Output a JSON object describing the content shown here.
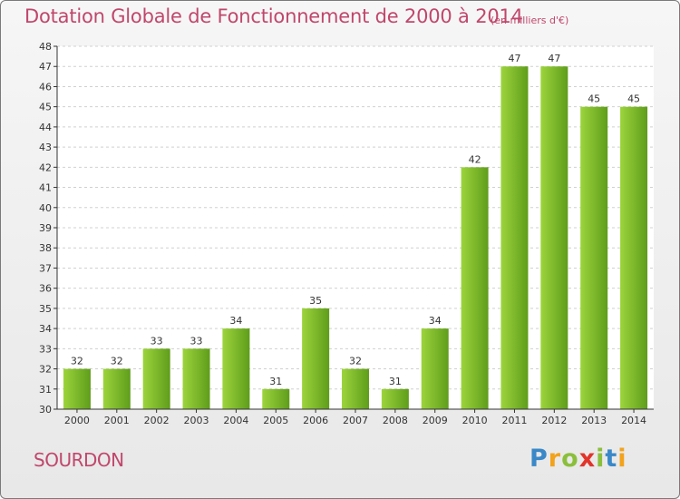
{
  "title": "Dotation Globale de Fonctionnement de 2000 à 2014",
  "subtitle": "(en milliers d'€)",
  "commune": "SOURDON",
  "logo": {
    "letters": [
      "P",
      "r",
      "o",
      "x",
      "i",
      "t",
      "i"
    ],
    "colors": [
      "#3a88c8",
      "#f2a21b",
      "#8bbf3b",
      "#e1342a",
      "#8bbf3b",
      "#3a88c8",
      "#f2a21b"
    ]
  },
  "colors": {
    "title": "#c0476c",
    "bar_light": "#9cd43c",
    "bar_dark": "#5f9d1b",
    "grid": "#d0d0d0",
    "axis": "#333333"
  },
  "chart_data": {
    "type": "bar",
    "title": "Dotation Globale de Fonctionnement de 2000 à 2014",
    "subtitle": "(en milliers d'€)",
    "categories": [
      "2000",
      "2001",
      "2002",
      "2003",
      "2004",
      "2005",
      "2006",
      "2007",
      "2008",
      "2009",
      "2010",
      "2011",
      "2012",
      "2013",
      "2014"
    ],
    "values": [
      32,
      32,
      33,
      33,
      34,
      31,
      35,
      32,
      31,
      34,
      42,
      47,
      47,
      45,
      45
    ],
    "ylim": [
      30,
      48
    ],
    "yticks": [
      30,
      31,
      32,
      33,
      34,
      35,
      36,
      37,
      38,
      39,
      40,
      41,
      42,
      43,
      44,
      45,
      46,
      47,
      48
    ],
    "grid": true,
    "xlabel": "",
    "ylabel": ""
  }
}
